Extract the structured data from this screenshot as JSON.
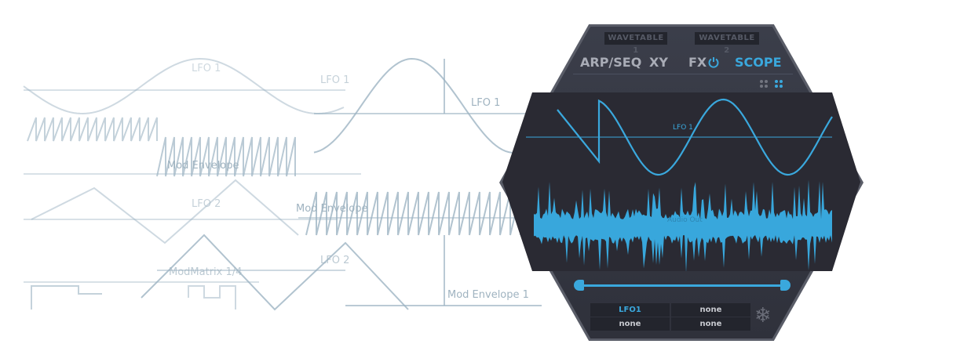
{
  "background_labels": [
    "LFO 1",
    "LFO 1",
    "LFO 1",
    "Mod Envelope",
    "LFO 2",
    "Mod Envelope",
    "LFO 2",
    "ModMatrix 1/4",
    "Mod Envelope 1"
  ],
  "panel": {
    "wavetables": [
      "WAVETABLE 1",
      "WAVETABLE 2"
    ],
    "tabs": [
      {
        "label": "ARP/SEQ"
      },
      {
        "label": "XY"
      },
      {
        "label": "FX"
      },
      {
        "label": "SCOPE",
        "active": true
      }
    ],
    "fx_power_icon": "power-icon",
    "view_toggles": [
      "grid-view-2x2-icon",
      "grid-view-2x2-icon-active"
    ],
    "scope": {
      "lfo_label": "LFO 1",
      "audio_label": "Audio Out"
    },
    "slider": {
      "start": 0,
      "end": 1
    },
    "sources": [
      [
        "LFO1",
        "none"
      ],
      [
        "none",
        "none"
      ]
    ],
    "freeze_icon": "snowflake-icon",
    "accent_color": "#3aa8dd"
  }
}
